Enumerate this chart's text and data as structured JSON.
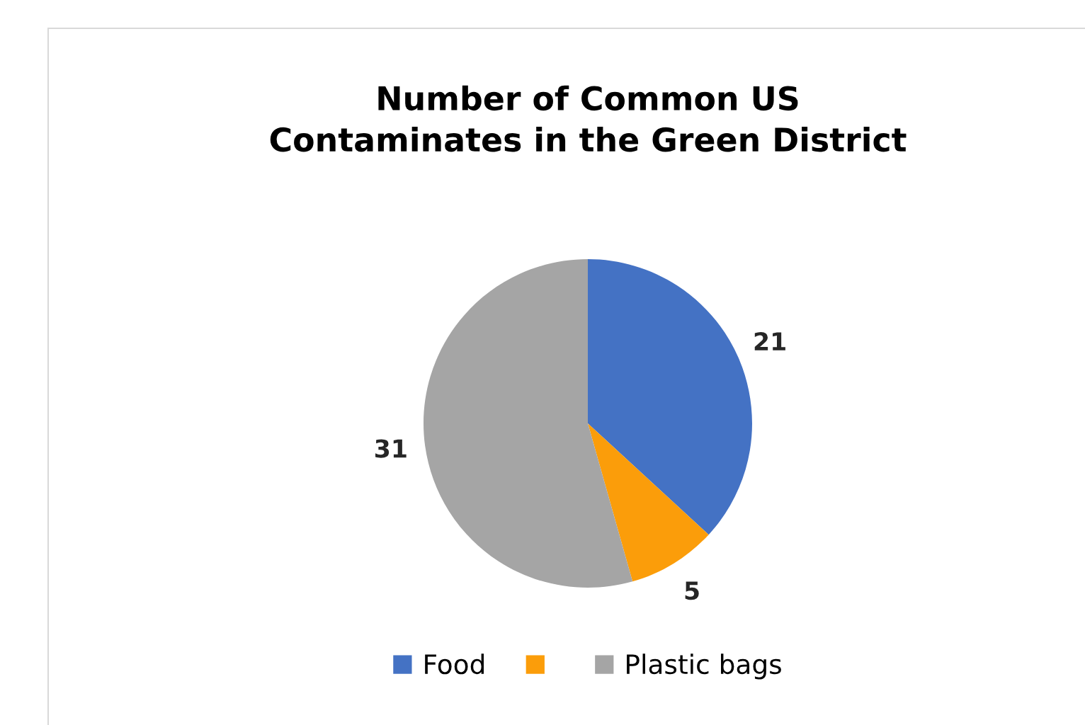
{
  "chart_data": {
    "type": "pie",
    "title": "Number of Common US\nContaminates in the Green District",
    "categories": [
      "Food",
      null,
      "Plastic bags"
    ],
    "values": [
      21,
      5,
      31
    ],
    "colors": [
      "#4472c4",
      "#fb9d0a",
      "#a5a5a5"
    ],
    "data_labels": true,
    "legend": "bottom"
  }
}
